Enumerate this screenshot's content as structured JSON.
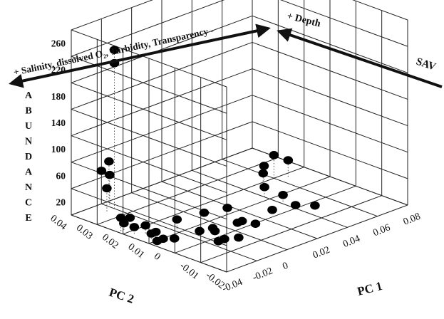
{
  "chart_data": {
    "type": "scatter",
    "subtype": "3d-scatter-with-drop-lines",
    "title": "",
    "zlabel_letters": [
      "A",
      "B",
      "U",
      "N",
      "D",
      "A",
      "N",
      "C",
      "E"
    ],
    "xlabel": "PC 1",
    "ylabel": "PC 2",
    "z_ticks": [
      "260",
      "220",
      "180",
      "140",
      "100",
      "60",
      "20"
    ],
    "x_ticks": [
      "-0.04",
      "-0.02",
      "0",
      "0.02",
      "0.04",
      "0.06",
      "0.08"
    ],
    "y_ticks": [
      "0.04",
      "0.03",
      "0.02",
      "0.01",
      "0",
      "-0.01",
      "-0.02"
    ],
    "zlim": [
      0,
      280
    ],
    "xlim": [
      -0.04,
      0.08
    ],
    "ylim": [
      -0.02,
      0.04
    ],
    "grid": true,
    "annotations": [
      {
        "text": "+ Salinity, dissolved O₂, Turbidity, Transparency -",
        "kind": "arrow-both"
      },
      {
        "text": "+  Depth",
        "kind": "arrow-left"
      },
      {
        "text": "SAV",
        "kind": "arrow-right"
      }
    ],
    "points": [
      {
        "x": -0.02,
        "y": 0.035,
        "z": 240
      },
      {
        "x": -0.02,
        "y": 0.035,
        "z": 220
      },
      {
        "x": -0.015,
        "y": 0.04,
        "z": 60
      },
      {
        "x": -0.02,
        "y": 0.04,
        "z": 50
      },
      {
        "x": -0.018,
        "y": 0.038,
        "z": 45
      },
      {
        "x": -0.025,
        "y": 0.035,
        "z": 35
      },
      {
        "x": -0.038,
        "y": 0.022,
        "z": 20
      },
      {
        "x": -0.036,
        "y": 0.022,
        "z": 10
      },
      {
        "x": -0.032,
        "y": 0.022,
        "z": 15
      },
      {
        "x": -0.036,
        "y": 0.018,
        "z": 10
      },
      {
        "x": -0.032,
        "y": 0.016,
        "z": 12
      },
      {
        "x": -0.035,
        "y": 0.012,
        "z": 8
      },
      {
        "x": -0.032,
        "y": 0.012,
        "z": 8
      },
      {
        "x": -0.038,
        "y": 0.008,
        "z": 5
      },
      {
        "x": -0.034,
        "y": 0.008,
        "z": 5
      },
      {
        "x": -0.03,
        "y": 0.006,
        "z": 5
      },
      {
        "x": -0.018,
        "y": 0.012,
        "z": 15
      },
      {
        "x": -0.015,
        "y": 0.005,
        "z": 5
      },
      {
        "x": -0.008,
        "y": 0.004,
        "z": 5
      },
      {
        "x": -0.01,
        "y": 0.002,
        "z": 5
      },
      {
        "x": 0.0,
        "y": 0.012,
        "z": 10
      },
      {
        "x": 0.005,
        "y": 0.002,
        "z": 5
      },
      {
        "x": 0.008,
        "y": 0.002,
        "z": 5
      },
      {
        "x": 0.01,
        "y": -0.002,
        "z": 5
      },
      {
        "x": 0.012,
        "y": 0.01,
        "z": 10
      },
      {
        "x": -0.018,
        "y": -0.004,
        "z": 5
      },
      {
        "x": -0.014,
        "y": -0.004,
        "z": 5
      },
      {
        "x": -0.008,
        "y": -0.006,
        "z": 5
      },
      {
        "x": 0.028,
        "y": 0.002,
        "z": 5
      },
      {
        "x": 0.04,
        "y": 0.0,
        "z": 5
      },
      {
        "x": 0.042,
        "y": 0.006,
        "z": 10
      },
      {
        "x": 0.046,
        "y": -0.004,
        "z": 5
      },
      {
        "x": 0.04,
        "y": 0.012,
        "z": 15
      },
      {
        "x": 0.046,
        "y": 0.016,
        "z": 25
      },
      {
        "x": 0.05,
        "y": 0.018,
        "z": 30
      },
      {
        "x": 0.06,
        "y": 0.02,
        "z": 35
      },
      {
        "x": 0.066,
        "y": 0.018,
        "z": 25
      }
    ]
  }
}
